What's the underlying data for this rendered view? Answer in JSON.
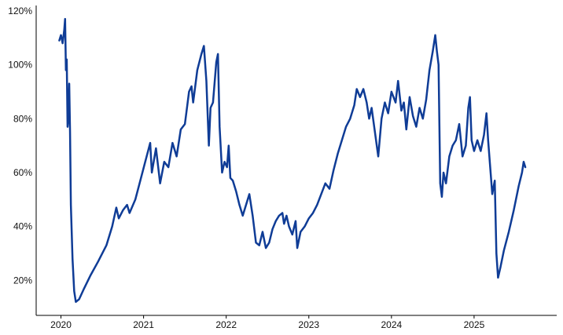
{
  "chart_data": {
    "type": "line",
    "title": "",
    "xlabel": "",
    "ylabel": "",
    "x_ticks": [
      "2020",
      "2021",
      "2022",
      "2023",
      "2024",
      "2025"
    ],
    "x_tick_values": [
      2020.0,
      2021.0,
      2022.0,
      2023.0,
      2024.0,
      2025.0
    ],
    "y_ticks": [
      "20%",
      "40%",
      "60%",
      "80%",
      "100%",
      "120%"
    ],
    "y_tick_values": [
      20,
      40,
      60,
      80,
      100,
      120
    ],
    "xlim": [
      2019.7,
      2026.0
    ],
    "ylim": [
      7,
      122
    ],
    "grid": false,
    "series": [
      {
        "color": "#0f3c96",
        "points": [
          [
            2019.98,
            109.0
          ],
          [
            2020.0,
            111.0
          ],
          [
            2020.02,
            108.0
          ],
          [
            2020.04,
            113.0
          ],
          [
            2020.05,
            117.0
          ],
          [
            2020.06,
            98.0
          ],
          [
            2020.07,
            102.0
          ],
          [
            2020.08,
            77.0
          ],
          [
            2020.09,
            80.0
          ],
          [
            2020.1,
            93.0
          ],
          [
            2020.11,
            75.0
          ],
          [
            2020.12,
            48.0
          ],
          [
            2020.14,
            28.0
          ],
          [
            2020.16,
            16.0
          ],
          [
            2020.18,
            12.0
          ],
          [
            2020.22,
            13.0
          ],
          [
            2020.28,
            17.0
          ],
          [
            2020.36,
            22.0
          ],
          [
            2020.45,
            27.0
          ],
          [
            2020.55,
            33.0
          ],
          [
            2020.62,
            40.0
          ],
          [
            2020.67,
            47.0
          ],
          [
            2020.7,
            43.0
          ],
          [
            2020.75,
            46.0
          ],
          [
            2020.8,
            48.0
          ],
          [
            2020.83,
            45.0
          ],
          [
            2020.9,
            50.0
          ],
          [
            2020.96,
            57.0
          ],
          [
            2021.02,
            64.0
          ],
          [
            2021.08,
            71.0
          ],
          [
            2021.1,
            60.0
          ],
          [
            2021.15,
            69.0
          ],
          [
            2021.2,
            56.0
          ],
          [
            2021.25,
            64.0
          ],
          [
            2021.3,
            62.0
          ],
          [
            2021.35,
            71.0
          ],
          [
            2021.4,
            66.0
          ],
          [
            2021.45,
            76.0
          ],
          [
            2021.5,
            78.0
          ],
          [
            2021.55,
            90.0
          ],
          [
            2021.58,
            92.0
          ],
          [
            2021.6,
            86.0
          ],
          [
            2021.65,
            98.0
          ],
          [
            2021.7,
            104.0
          ],
          [
            2021.73,
            107.0
          ],
          [
            2021.76,
            94.0
          ],
          [
            2021.79,
            70.0
          ],
          [
            2021.81,
            84.0
          ],
          [
            2021.84,
            86.0
          ],
          [
            2021.88,
            101.0
          ],
          [
            2021.9,
            104.0
          ],
          [
            2021.92,
            77.0
          ],
          [
            2021.95,
            60.0
          ],
          [
            2021.98,
            64.0
          ],
          [
            2022.01,
            62.0
          ],
          [
            2022.03,
            70.0
          ],
          [
            2022.05,
            58.0
          ],
          [
            2022.08,
            57.0
          ],
          [
            2022.12,
            53.0
          ],
          [
            2022.16,
            48.0
          ],
          [
            2022.2,
            44.0
          ],
          [
            2022.25,
            49.0
          ],
          [
            2022.28,
            52.0
          ],
          [
            2022.32,
            44.0
          ],
          [
            2022.36,
            34.0
          ],
          [
            2022.4,
            33.0
          ],
          [
            2022.44,
            38.0
          ],
          [
            2022.48,
            32.0
          ],
          [
            2022.52,
            34.0
          ],
          [
            2022.56,
            39.0
          ],
          [
            2022.6,
            42.0
          ],
          [
            2022.64,
            44.0
          ],
          [
            2022.68,
            45.0
          ],
          [
            2022.7,
            41.0
          ],
          [
            2022.73,
            44.0
          ],
          [
            2022.76,
            40.0
          ],
          [
            2022.8,
            37.0
          ],
          [
            2022.84,
            42.0
          ],
          [
            2022.86,
            32.0
          ],
          [
            2022.9,
            38.0
          ],
          [
            2022.95,
            40.0
          ],
          [
            2023.0,
            43.0
          ],
          [
            2023.05,
            45.0
          ],
          [
            2023.1,
            48.0
          ],
          [
            2023.15,
            52.0
          ],
          [
            2023.2,
            56.0
          ],
          [
            2023.25,
            54.0
          ],
          [
            2023.3,
            61.0
          ],
          [
            2023.35,
            67.0
          ],
          [
            2023.4,
            72.0
          ],
          [
            2023.45,
            77.0
          ],
          [
            2023.5,
            80.0
          ],
          [
            2023.55,
            85.0
          ],
          [
            2023.58,
            91.0
          ],
          [
            2023.62,
            88.0
          ],
          [
            2023.66,
            91.0
          ],
          [
            2023.7,
            86.0
          ],
          [
            2023.73,
            80.0
          ],
          [
            2023.76,
            84.0
          ],
          [
            2023.8,
            75.0
          ],
          [
            2023.84,
            66.0
          ],
          [
            2023.88,
            80.0
          ],
          [
            2023.92,
            86.0
          ],
          [
            2023.96,
            82.0
          ],
          [
            2024.0,
            90.0
          ],
          [
            2024.05,
            86.0
          ],
          [
            2024.08,
            94.0
          ],
          [
            2024.12,
            83.0
          ],
          [
            2024.15,
            86.0
          ],
          [
            2024.18,
            76.0
          ],
          [
            2024.22,
            88.0
          ],
          [
            2024.26,
            81.0
          ],
          [
            2024.3,
            77.0
          ],
          [
            2024.34,
            84.0
          ],
          [
            2024.38,
            80.0
          ],
          [
            2024.42,
            87.0
          ],
          [
            2024.46,
            98.0
          ],
          [
            2024.5,
            105.0
          ],
          [
            2024.53,
            111.0
          ],
          [
            2024.55,
            105.0
          ],
          [
            2024.57,
            100.0
          ],
          [
            2024.59,
            56.0
          ],
          [
            2024.61,
            51.0
          ],
          [
            2024.63,
            60.0
          ],
          [
            2024.66,
            56.0
          ],
          [
            2024.7,
            66.0
          ],
          [
            2024.74,
            70.0
          ],
          [
            2024.78,
            72.0
          ],
          [
            2024.82,
            78.0
          ],
          [
            2024.86,
            66.0
          ],
          [
            2024.9,
            70.0
          ],
          [
            2024.93,
            84.0
          ],
          [
            2024.95,
            88.0
          ],
          [
            2024.97,
            72.0
          ],
          [
            2025.0,
            68.0
          ],
          [
            2025.04,
            72.0
          ],
          [
            2025.08,
            68.0
          ],
          [
            2025.12,
            74.0
          ],
          [
            2025.15,
            82.0
          ],
          [
            2025.17,
            72.0
          ],
          [
            2025.2,
            60.0
          ],
          [
            2025.22,
            52.0
          ],
          [
            2025.25,
            57.0
          ],
          [
            2025.27,
            30.0
          ],
          [
            2025.29,
            21.0
          ],
          [
            2025.32,
            25.0
          ],
          [
            2025.36,
            31.0
          ],
          [
            2025.42,
            38.0
          ],
          [
            2025.48,
            46.0
          ],
          [
            2025.54,
            55.0
          ],
          [
            2025.58,
            60.0
          ],
          [
            2025.6,
            64.0
          ],
          [
            2025.62,
            62.0
          ]
        ]
      }
    ]
  }
}
